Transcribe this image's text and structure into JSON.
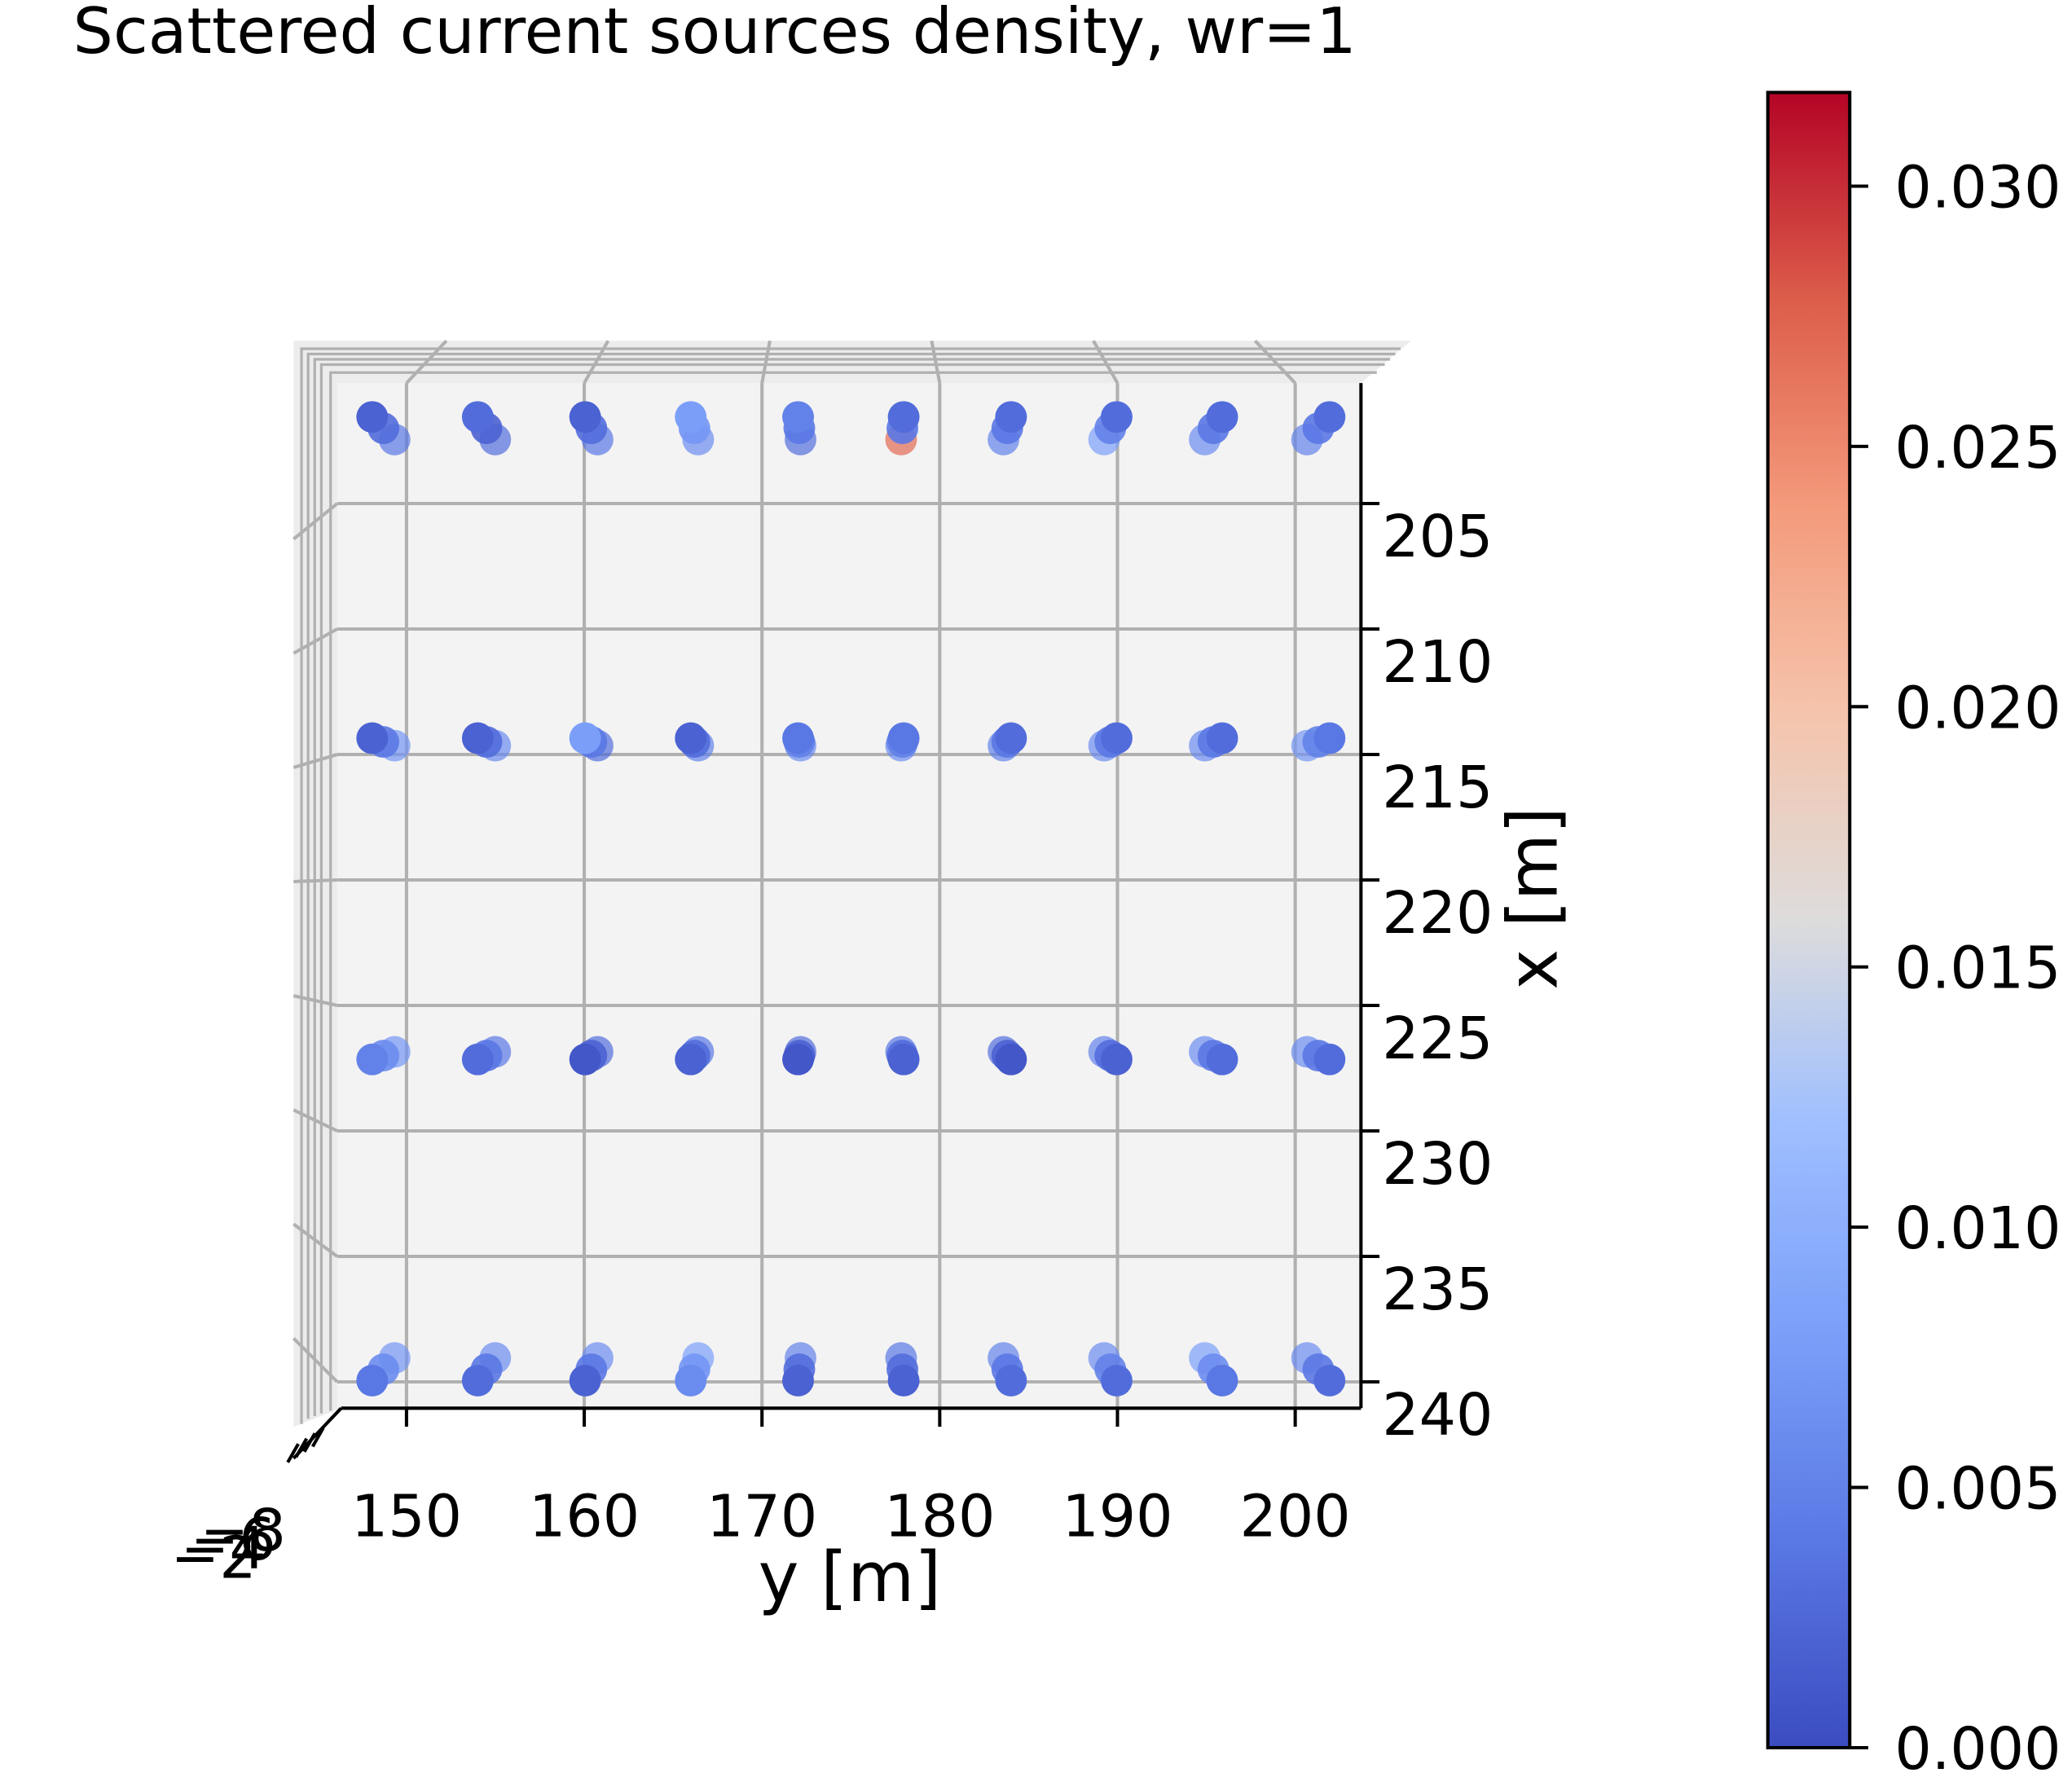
{
  "chart_data": {
    "type": "scatter3d",
    "title": "Scattered current sources density, wr=1",
    "xlabel": "y [m]",
    "ylabel": "x [m]",
    "colormap": "coolwarm",
    "clim": [
      0,
      0.0318
    ],
    "cticks": [
      {
        "value": 0,
        "label": "0.000"
      },
      {
        "value": 0.005,
        "label": "0.005"
      },
      {
        "value": 0.01,
        "label": "0.010"
      },
      {
        "value": 0.015,
        "label": "0.015"
      },
      {
        "value": 0.02,
        "label": "0.020"
      },
      {
        "value": 0.025,
        "label": "0.025"
      },
      {
        "value": 0.03,
        "label": "0.030"
      }
    ],
    "ylim": [
      146.1,
      203.7
    ],
    "yticks": [
      150,
      160,
      170,
      180,
      190,
      200
    ],
    "xlim": [
      200.2,
      241.05
    ],
    "xticks": [
      205,
      210,
      215,
      220,
      225,
      230,
      235,
      240
    ],
    "zlim": [
      -8.5,
      -1.5
    ],
    "zticks": [
      {
        "value": -8,
        "label": "−8"
      },
      {
        "value": -6,
        "label": "−6"
      },
      {
        "value": -4,
        "label": "−4"
      },
      {
        "value": -2,
        "label": "−2"
      }
    ],
    "grid": true,
    "x": [
      202,
      202,
      202,
      202,
      202,
      202,
      202,
      202,
      202,
      202,
      202,
      202,
      202,
      202,
      202,
      202,
      202,
      202,
      202,
      202,
      202,
      202,
      202,
      202,
      202,
      202,
      202,
      202,
      202,
      202,
      214.5,
      214.5,
      214.5,
      214.5,
      214.5,
      214.5,
      214.5,
      214.5,
      214.5,
      214.5,
      214.5,
      214.5,
      214.5,
      214.5,
      214.5,
      214.5,
      214.5,
      214.5,
      214.5,
      214.5,
      214.5,
      214.5,
      214.5,
      214.5,
      214.5,
      214.5,
      214.5,
      214.5,
      214.5,
      214.5,
      227,
      227,
      227,
      227,
      227,
      227,
      227,
      227,
      227,
      227,
      227,
      227,
      227,
      227,
      227,
      227,
      227,
      227,
      227,
      227,
      227,
      227,
      227,
      227,
      227,
      227,
      227,
      227,
      227,
      227,
      239.5,
      239.5,
      239.5,
      239.5,
      239.5,
      239.5,
      239.5,
      239.5,
      239.5,
      239.5,
      239.5,
      239.5,
      239.5,
      239.5,
      239.5,
      239.5,
      239.5,
      239.5,
      239.5,
      239.5,
      239.5,
      239.5,
      239.5,
      239.5,
      239.5,
      239.5,
      239.5,
      239.5,
      239.5,
      239.5
    ],
    "y": [
      148.7,
      148.7,
      148.7,
      154.5,
      154.5,
      154.5,
      160.4,
      160.4,
      160.4,
      166.2,
      166.2,
      166.2,
      172.1,
      172.1,
      172.1,
      177.9,
      177.9,
      177.9,
      183.8,
      183.8,
      183.8,
      189.6,
      189.6,
      189.6,
      195.4,
      195.4,
      195.4,
      201.3,
      201.3,
      201.3,
      148.7,
      148.7,
      148.7,
      154.5,
      154.5,
      154.5,
      160.4,
      160.4,
      160.4,
      166.2,
      166.2,
      166.2,
      172.1,
      172.1,
      172.1,
      177.9,
      177.9,
      177.9,
      183.8,
      183.8,
      183.8,
      189.6,
      189.6,
      189.6,
      195.4,
      195.4,
      195.4,
      201.3,
      201.3,
      201.3,
      148.7,
      148.7,
      148.7,
      154.5,
      154.5,
      154.5,
      160.4,
      160.4,
      160.4,
      166.2,
      166.2,
      166.2,
      172.1,
      172.1,
      172.1,
      177.9,
      177.9,
      177.9,
      183.8,
      183.8,
      183.8,
      189.6,
      189.6,
      189.6,
      195.4,
      195.4,
      195.4,
      201.3,
      201.3,
      201.3,
      148.7,
      148.7,
      148.7,
      154.5,
      154.5,
      154.5,
      160.4,
      160.4,
      160.4,
      166.2,
      166.2,
      166.2,
      172.1,
      172.1,
      172.1,
      177.9,
      177.9,
      177.9,
      183.8,
      183.8,
      183.8,
      189.6,
      189.6,
      189.6,
      195.4,
      195.4,
      195.4,
      201.3,
      201.3,
      201.3
    ],
    "z": [
      -7,
      -5,
      -3,
      -7,
      -5,
      -3,
      -7,
      -5,
      -3,
      -7,
      -5,
      -3,
      -7,
      -5,
      -3,
      -7,
      -5,
      -3,
      -7,
      -5,
      -3,
      -7,
      -5,
      -3,
      -7,
      -5,
      -3,
      -7,
      -5,
      -3,
      -7,
      -5,
      -3,
      -7,
      -5,
      -3,
      -7,
      -5,
      -3,
      -7,
      -5,
      -3,
      -7,
      -5,
      -3,
      -7,
      -5,
      -3,
      -7,
      -5,
      -3,
      -7,
      -5,
      -3,
      -7,
      -5,
      -3,
      -7,
      -5,
      -3,
      -7,
      -5,
      -3,
      -7,
      -5,
      -3,
      -7,
      -5,
      -3,
      -7,
      -5,
      -3,
      -7,
      -5,
      -3,
      -7,
      -5,
      -3,
      -7,
      -5,
      -3,
      -7,
      -5,
      -3,
      -7,
      -5,
      -3,
      -7,
      -5,
      -3,
      -7,
      -5,
      -3,
      -7,
      -5,
      -3,
      -7,
      -5,
      -3,
      -7,
      -5,
      -3,
      -7,
      -5,
      -3,
      -7,
      -5,
      -3,
      -7,
      -5,
      -3,
      -7,
      -5,
      -3,
      -7,
      -5,
      -3,
      -7,
      -5,
      -3
    ],
    "values": [
      0.004,
      0.003,
      0.002,
      0.003,
      0.002,
      0.003,
      0.004,
      0.003,
      0.002,
      0.006,
      0.007,
      0.008,
      0.003,
      0.004,
      0.005,
      0.027,
      0.004,
      0.003,
      0.005,
      0.004,
      0.003,
      0.008,
      0.005,
      0.003,
      0.006,
      0.004,
      0.003,
      0.005,
      0.004,
      0.003,
      0.007,
      0.004,
      0.002,
      0.006,
      0.003,
      0.002,
      0.003,
      0.004,
      0.008,
      0.005,
      0.003,
      0.002,
      0.006,
      0.005,
      0.004,
      0.006,
      0.005,
      0.004,
      0.005,
      0.004,
      0.003,
      0.006,
      0.004,
      0.003,
      0.006,
      0.004,
      0.003,
      0.007,
      0.005,
      0.004,
      0.007,
      0.006,
      0.005,
      0.004,
      0.004,
      0.003,
      0.003,
      0.002,
      0.001,
      0.004,
      0.003,
      0.002,
      0.003,
      0.002,
      0.001,
      0.004,
      0.003,
      0.002,
      0.003,
      0.002,
      0.001,
      0.005,
      0.003,
      0.002,
      0.006,
      0.004,
      0.003,
      0.006,
      0.004,
      0.003,
      0.007,
      0.006,
      0.004,
      0.006,
      0.004,
      0.003,
      0.006,
      0.004,
      0.002,
      0.008,
      0.007,
      0.006,
      0.005,
      0.003,
      0.002,
      0.004,
      0.003,
      0.002,
      0.005,
      0.004,
      0.003,
      0.006,
      0.005,
      0.003,
      0.008,
      0.006,
      0.004,
      0.006,
      0.004,
      0.003
    ]
  }
}
